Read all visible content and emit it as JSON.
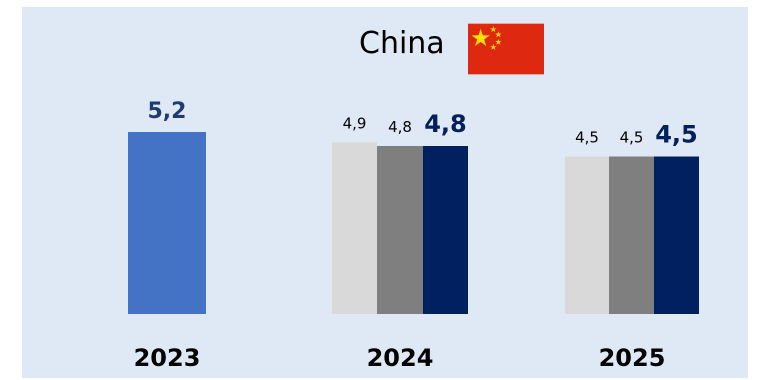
{
  "title": "China",
  "flag_icon": "china-flag-icon",
  "colors": {
    "background": "#dfe8f5",
    "bar_2023": "#4472c4",
    "light_grey": "#d9d9d9",
    "dark_grey": "#7f7f7f",
    "navy": "#002060",
    "value_small": "#000000",
    "value_emphasis": "#002060",
    "value_2023": "#1f3b73"
  },
  "chart_data": {
    "type": "bar",
    "categories": [
      "2023",
      "2024",
      "2025"
    ],
    "groups": [
      {
        "category": "2023",
        "bars": [
          {
            "value": 5.2,
            "label": "5,2",
            "color": "#4472c4",
            "emphasis": true
          }
        ]
      },
      {
        "category": "2024",
        "bars": [
          {
            "value": 4.9,
            "label": "4,9",
            "color": "#d9d9d9",
            "emphasis": false
          },
          {
            "value": 4.8,
            "label": "4,8",
            "color": "#7f7f7f",
            "emphasis": false
          },
          {
            "value": 4.8,
            "label": "4,8",
            "color": "#002060",
            "emphasis": true
          }
        ]
      },
      {
        "category": "2025",
        "bars": [
          {
            "value": 4.5,
            "label": "4,5",
            "color": "#d9d9d9",
            "emphasis": false
          },
          {
            "value": 4.5,
            "label": "4,5",
            "color": "#7f7f7f",
            "emphasis": false
          },
          {
            "value": 4.5,
            "label": "4,5",
            "color": "#002060",
            "emphasis": true
          }
        ]
      }
    ],
    "ylim": [
      0,
      5.2
    ],
    "grid": false,
    "legend": "none"
  }
}
